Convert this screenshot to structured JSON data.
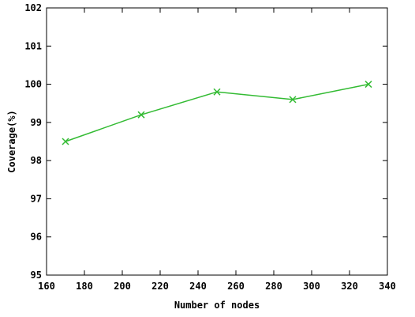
{
  "chart_data": {
    "type": "line",
    "title": "",
    "xlabel": "Number of nodes",
    "ylabel": "Coverage(%)",
    "xlim": [
      160,
      340
    ],
    "ylim": [
      95,
      102
    ],
    "xticks": [
      160,
      180,
      200,
      220,
      240,
      260,
      280,
      300,
      320,
      340
    ],
    "yticks": [
      95,
      96,
      97,
      98,
      99,
      100,
      101,
      102
    ],
    "grid": false,
    "legend": "none",
    "series": [
      {
        "color": "#33bb33",
        "marker": "x",
        "x": [
          170,
          210,
          250,
          290,
          330
        ],
        "y": [
          98.5,
          99.2,
          99.8,
          99.6,
          100.0
        ]
      }
    ]
  }
}
